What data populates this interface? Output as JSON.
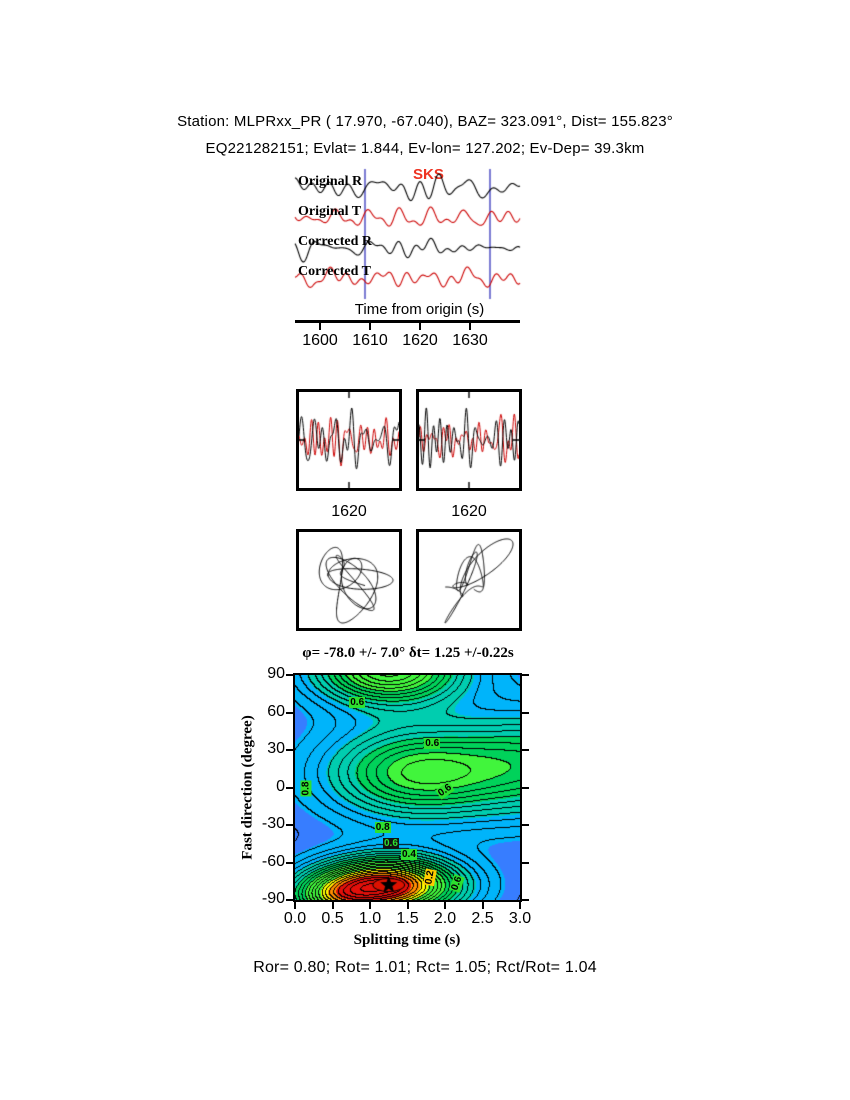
{
  "header": {
    "line1": "Station: MLPRxx_PR (  17.970,  -67.040), BAZ=  323.091°, Dist=  155.823°",
    "line2": "EQ221282151; Evlat=   1.844, Ev-lon= 127.202; Ev-Dep= 39.3km"
  },
  "waveform_panel": {
    "phase_label": "SKS",
    "phase_color": "#ee3322",
    "trace_labels": [
      "Original R",
      "Original T",
      "Corrected R",
      "Corrected T"
    ],
    "trace_colors": [
      "#000000",
      "#cc0000",
      "#000000",
      "#cc0000"
    ],
    "axis_label": "Time from origin (s)",
    "xlim": [
      1595,
      1640
    ],
    "xticks": [
      1600,
      1610,
      1620,
      1630
    ],
    "window_s": [
      1609,
      1634
    ],
    "window_color": "#3333bb"
  },
  "zoom_panels": {
    "left_label": "1620",
    "right_label": "1620"
  },
  "contour": {
    "title": "φ= -78.0 +/- 7.0° δt= 1.25 +/-0.22s",
    "xlabel": "Splitting time (s)",
    "ylabel": "Fast direction (degree)",
    "xlim": [
      0,
      3
    ],
    "ylim": [
      -90,
      90
    ],
    "xticks": [
      "0.0",
      "0.5",
      "1.0",
      "1.5",
      "2.0",
      "2.5",
      "3.0"
    ],
    "yticks": [
      90,
      60,
      30,
      0,
      -30,
      -60,
      -90
    ],
    "best_fit": {
      "phi_deg": -78.0,
      "phi_err_deg": 7.0,
      "dt_s": 1.25,
      "dt_err_s": 0.22
    },
    "labels": [
      {
        "text": "0.6",
        "dt": 0.83,
        "phi": 68,
        "rot": 0
      },
      {
        "text": "0.6",
        "dt": 1.83,
        "phi": 35,
        "rot": 0
      },
      {
        "text": "0.8",
        "dt": 0.15,
        "phi": -1,
        "rot": -90
      },
      {
        "text": "0.6",
        "dt": 2.0,
        "phi": -3,
        "rot": -35
      },
      {
        "text": "0.8",
        "dt": 1.17,
        "phi": -32,
        "rot": 0
      },
      {
        "text": "0.6",
        "dt": 1.28,
        "phi": -45,
        "rot": 0,
        "bg": "#111111",
        "fg": "#2ee02e"
      },
      {
        "text": "0.4",
        "dt": 1.52,
        "phi": -54,
        "rot": 0
      },
      {
        "text": "0.2",
        "dt": 1.8,
        "phi": -72,
        "rot": -80,
        "bg": "#ffcc00"
      },
      {
        "text": "0.6",
        "dt": 2.16,
        "phi": -77,
        "rot": -70
      }
    ]
  },
  "footer": {
    "stats": "Ror= 0.80; Rot= 1.01; Rct= 1.05; Rct/Rot= 1.04",
    "values": {
      "Ror": 0.8,
      "Rot": 1.01,
      "Rct": 1.05,
      "Rct_over_Rot": 1.04
    }
  },
  "chart_data": [
    {
      "type": "line",
      "id": "seismogram-panel",
      "series": [
        {
          "name": "Original R",
          "color": "#000000"
        },
        {
          "name": "Original T",
          "color": "#cc0000"
        },
        {
          "name": "Corrected R",
          "color": "#000000"
        },
        {
          "name": "Corrected T",
          "color": "#cc0000"
        }
      ],
      "xlabel": "Time from origin (s)",
      "xlim": [
        1595,
        1640
      ],
      "xticks": [
        1600,
        1610,
        1620,
        1630
      ],
      "phase_pick": "SKS",
      "analysis_window_s": [
        1609,
        1634
      ],
      "note": "band-limited seismic noise traces; window marked by blue vertical lines"
    },
    {
      "type": "line",
      "id": "windowed-pair-original",
      "series": [
        "R (black)",
        "T (red)"
      ],
      "xtick": 1620
    },
    {
      "type": "line",
      "id": "windowed-pair-corrected",
      "series": [
        "R (black)",
        "T (red)"
      ],
      "xtick": 1620
    },
    {
      "type": "scatter",
      "id": "particle-motion-original",
      "note": "elliptical particle motion before correction"
    },
    {
      "type": "scatter",
      "id": "particle-motion-corrected",
      "note": "linearized diagonal particle motion after correction"
    },
    {
      "type": "heatmap",
      "id": "splitting-error-surface",
      "title": "φ= -78.0 +/- 7.0° δt= 1.25 +/-0.22s",
      "xlabel": "Splitting time (s)",
      "ylabel": "Fast direction (degree)",
      "xlim": [
        0,
        3
      ],
      "ylim": [
        -90,
        90
      ],
      "xticks": [
        0,
        0.5,
        1,
        1.5,
        2,
        2.5,
        3
      ],
      "yticks": [
        90,
        60,
        30,
        0,
        -30,
        -60,
        -90
      ],
      "grid": false,
      "legend_position": "none",
      "best_fit": {
        "fast_direction_deg": -78.0,
        "fast_direction_err_deg": 7.0,
        "delay_time_s": 1.25,
        "delay_time_err_s": 0.22
      },
      "contour_level_labels": [
        0.2,
        0.4,
        0.6,
        0.8
      ],
      "markers": [
        {
          "shape": "star",
          "x": 1.25,
          "y": -78,
          "color": "#000000",
          "confidence_ellipse_color": "#dd1100"
        }
      ]
    }
  ]
}
